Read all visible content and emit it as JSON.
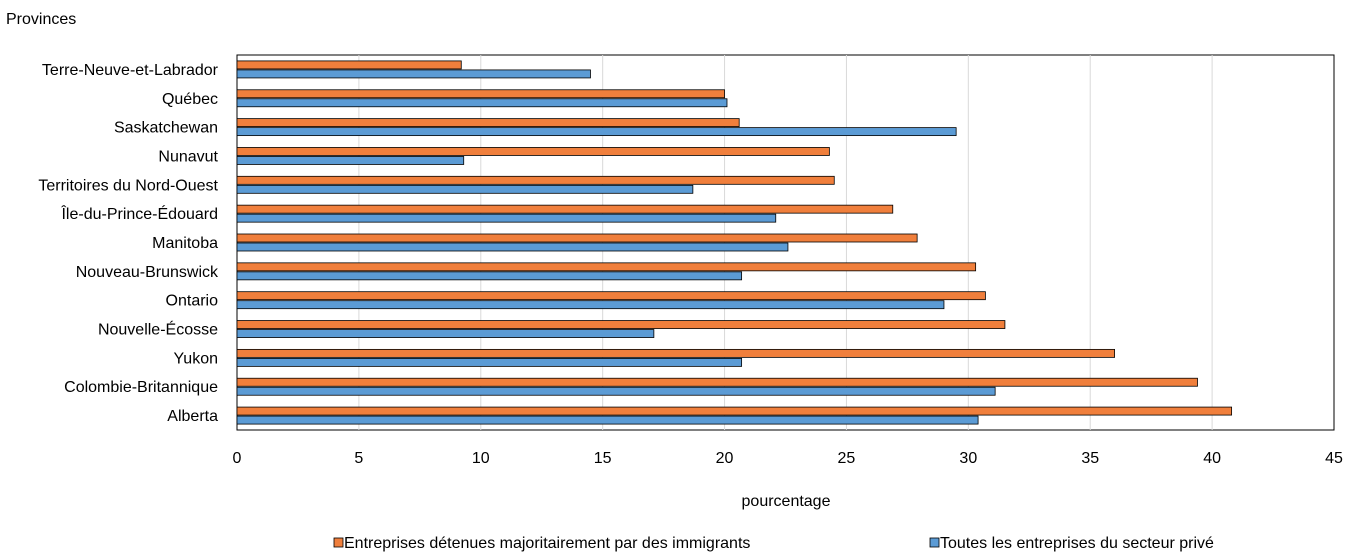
{
  "chart_data": {
    "type": "bar",
    "orientation": "horizontal",
    "title": "Provinces",
    "xlabel": "pourcentage",
    "ylabel": "",
    "xlim": [
      0,
      45
    ],
    "xticks": [
      0,
      5,
      10,
      15,
      20,
      25,
      30,
      35,
      40,
      45
    ],
    "grid": true,
    "legend_position": "bottom",
    "categories": [
      "Terre-Neuve-et-Labrador",
      "Québec",
      "Saskatchewan",
      "Nunavut",
      "Territoires du Nord-Ouest",
      "Île-du-Prince-Édouard",
      "Manitoba",
      "Nouveau-Brunswick",
      "Ontario",
      "Nouvelle-Écosse",
      "Yukon",
      "Colombie-Britannique",
      "Alberta"
    ],
    "series": [
      {
        "name": "Entreprises détenues majoritairement par des immigrants",
        "color": "#f07f3c",
        "values": [
          9.2,
          20.0,
          20.6,
          24.3,
          24.5,
          26.9,
          27.9,
          30.3,
          30.7,
          31.5,
          36.0,
          39.4,
          40.8
        ]
      },
      {
        "name": "Toutes les entreprises du secteur privé",
        "color": "#5b9bd5",
        "values": [
          14.5,
          20.1,
          29.5,
          9.3,
          18.7,
          22.1,
          22.6,
          20.7,
          29.0,
          17.1,
          20.7,
          31.1,
          30.4
        ]
      }
    ]
  }
}
